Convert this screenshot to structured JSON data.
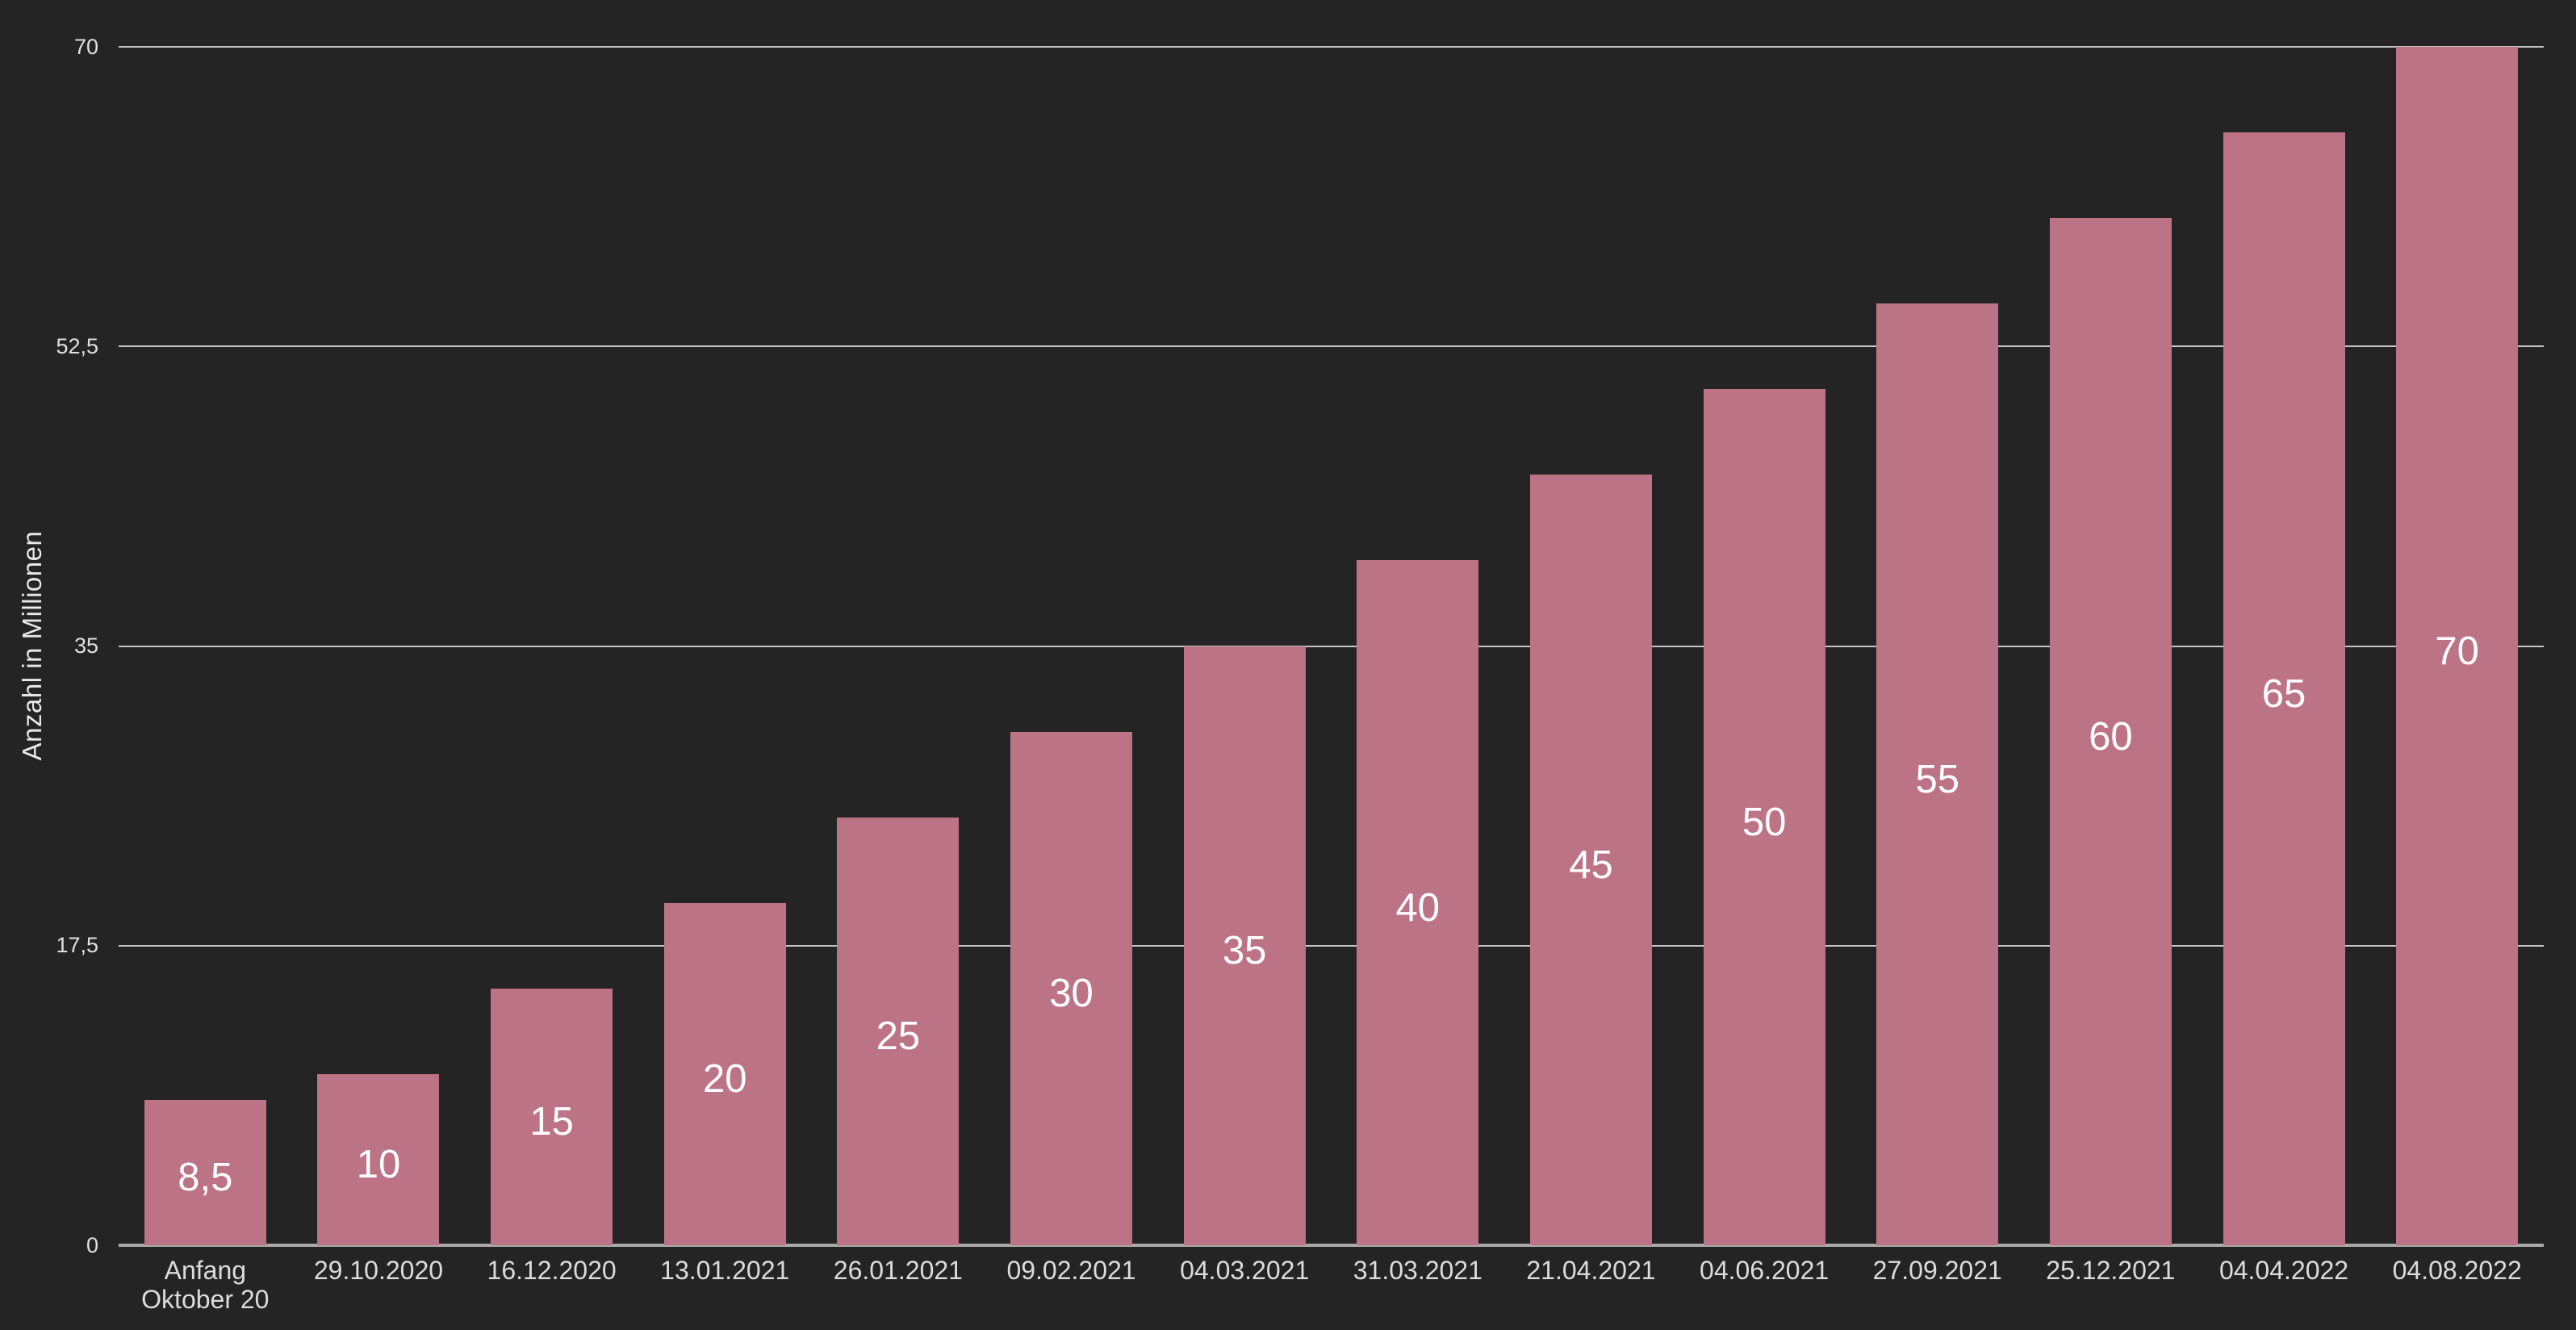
{
  "chart_data": {
    "type": "bar",
    "title": "",
    "xlabel": "",
    "ylabel": "Anzahl in Millionen",
    "ylim": [
      0,
      70
    ],
    "grid": true,
    "legend": "none",
    "background_color": "#242424",
    "bar_color": "#bd7386",
    "value_label_color": "#ffffff",
    "axis_text_color": "#e0e0e0",
    "categories": [
      "Anfang Oktober 20",
      "29.10.2020",
      "16.12.2020",
      "13.01.2021",
      "26.01.2021",
      "09.02.2021",
      "04.03.2021",
      "31.03.2021",
      "21.04.2021",
      "04.06.2021",
      "27.09.2021",
      "25.12.2021",
      "04.04.2022",
      "04.08.2022"
    ],
    "values": [
      8.5,
      10,
      15,
      20,
      25,
      30,
      35,
      40,
      45,
      50,
      55,
      60,
      65,
      70
    ],
    "value_labels": [
      "8,5",
      "10",
      "15",
      "20",
      "25",
      "30",
      "35",
      "40",
      "45",
      "50",
      "55",
      "60",
      "65",
      "70"
    ],
    "y_ticks": [
      {
        "value": 0,
        "label": "0"
      },
      {
        "value": 17.5,
        "label": "17,5"
      },
      {
        "value": 35,
        "label": "35"
      },
      {
        "value": 52.5,
        "label": "52,5"
      },
      {
        "value": 70,
        "label": "70"
      }
    ]
  }
}
